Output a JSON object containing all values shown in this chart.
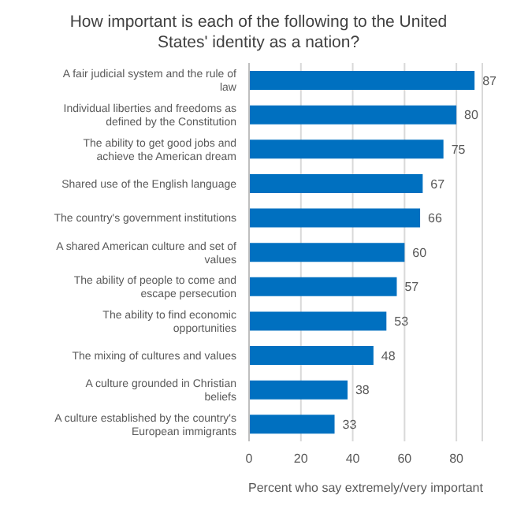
{
  "chart_data": {
    "type": "bar",
    "orientation": "horizontal",
    "title": "How important is each of the following to the United States' identity as a nation?",
    "xlabel": "Percent who say extremely/very important",
    "categories": [
      "A fair judicial system and the rule of law",
      "Individual liberties and freedoms as defined by the Constitution",
      "The ability to get good jobs and achieve the American dream",
      "Shared use of the English language",
      "The country's government institutions",
      "A shared American culture and set of values",
      "The ability of people to come and escape persecution",
      "The ability to find economic opportunities",
      "The mixing of cultures and values",
      "A culture grounded in Christian beliefs",
      "A culture established by the country's European immigrants"
    ],
    "values": [
      87,
      80,
      75,
      67,
      66,
      60,
      57,
      53,
      48,
      38,
      33
    ],
    "color": "#0070c0",
    "xlim": [
      0,
      90
    ],
    "xticks": [
      0,
      20,
      40,
      60,
      80
    ],
    "grid": "x",
    "data_labels": true
  }
}
